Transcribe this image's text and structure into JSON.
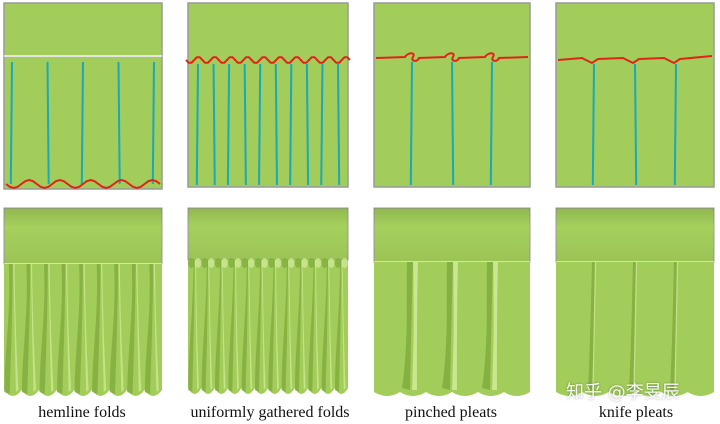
{
  "colors": {
    "fabric": "#a2cd5a",
    "fabric_dark": "#82ad40",
    "fabric_light": "#cde996",
    "seam": "#e2231a",
    "fold_line": "#19a9b9",
    "panel_border": "#9a9a9a"
  },
  "panels": [
    {
      "caption": "hemline folds",
      "kind": "hemline",
      "fold_lines": 5,
      "seam_position": "bottom"
    },
    {
      "caption": "uniformly gathered folds",
      "kind": "gathered",
      "fold_lines": 10,
      "seam_position": "top"
    },
    {
      "caption": "pinched pleats",
      "kind": "pinched",
      "fold_lines": 3,
      "seam_position": "top"
    },
    {
      "caption": "knife pleats",
      "kind": "knife",
      "fold_lines": 3,
      "seam_position": "top"
    }
  ],
  "watermark": "知乎 @李旻辰"
}
